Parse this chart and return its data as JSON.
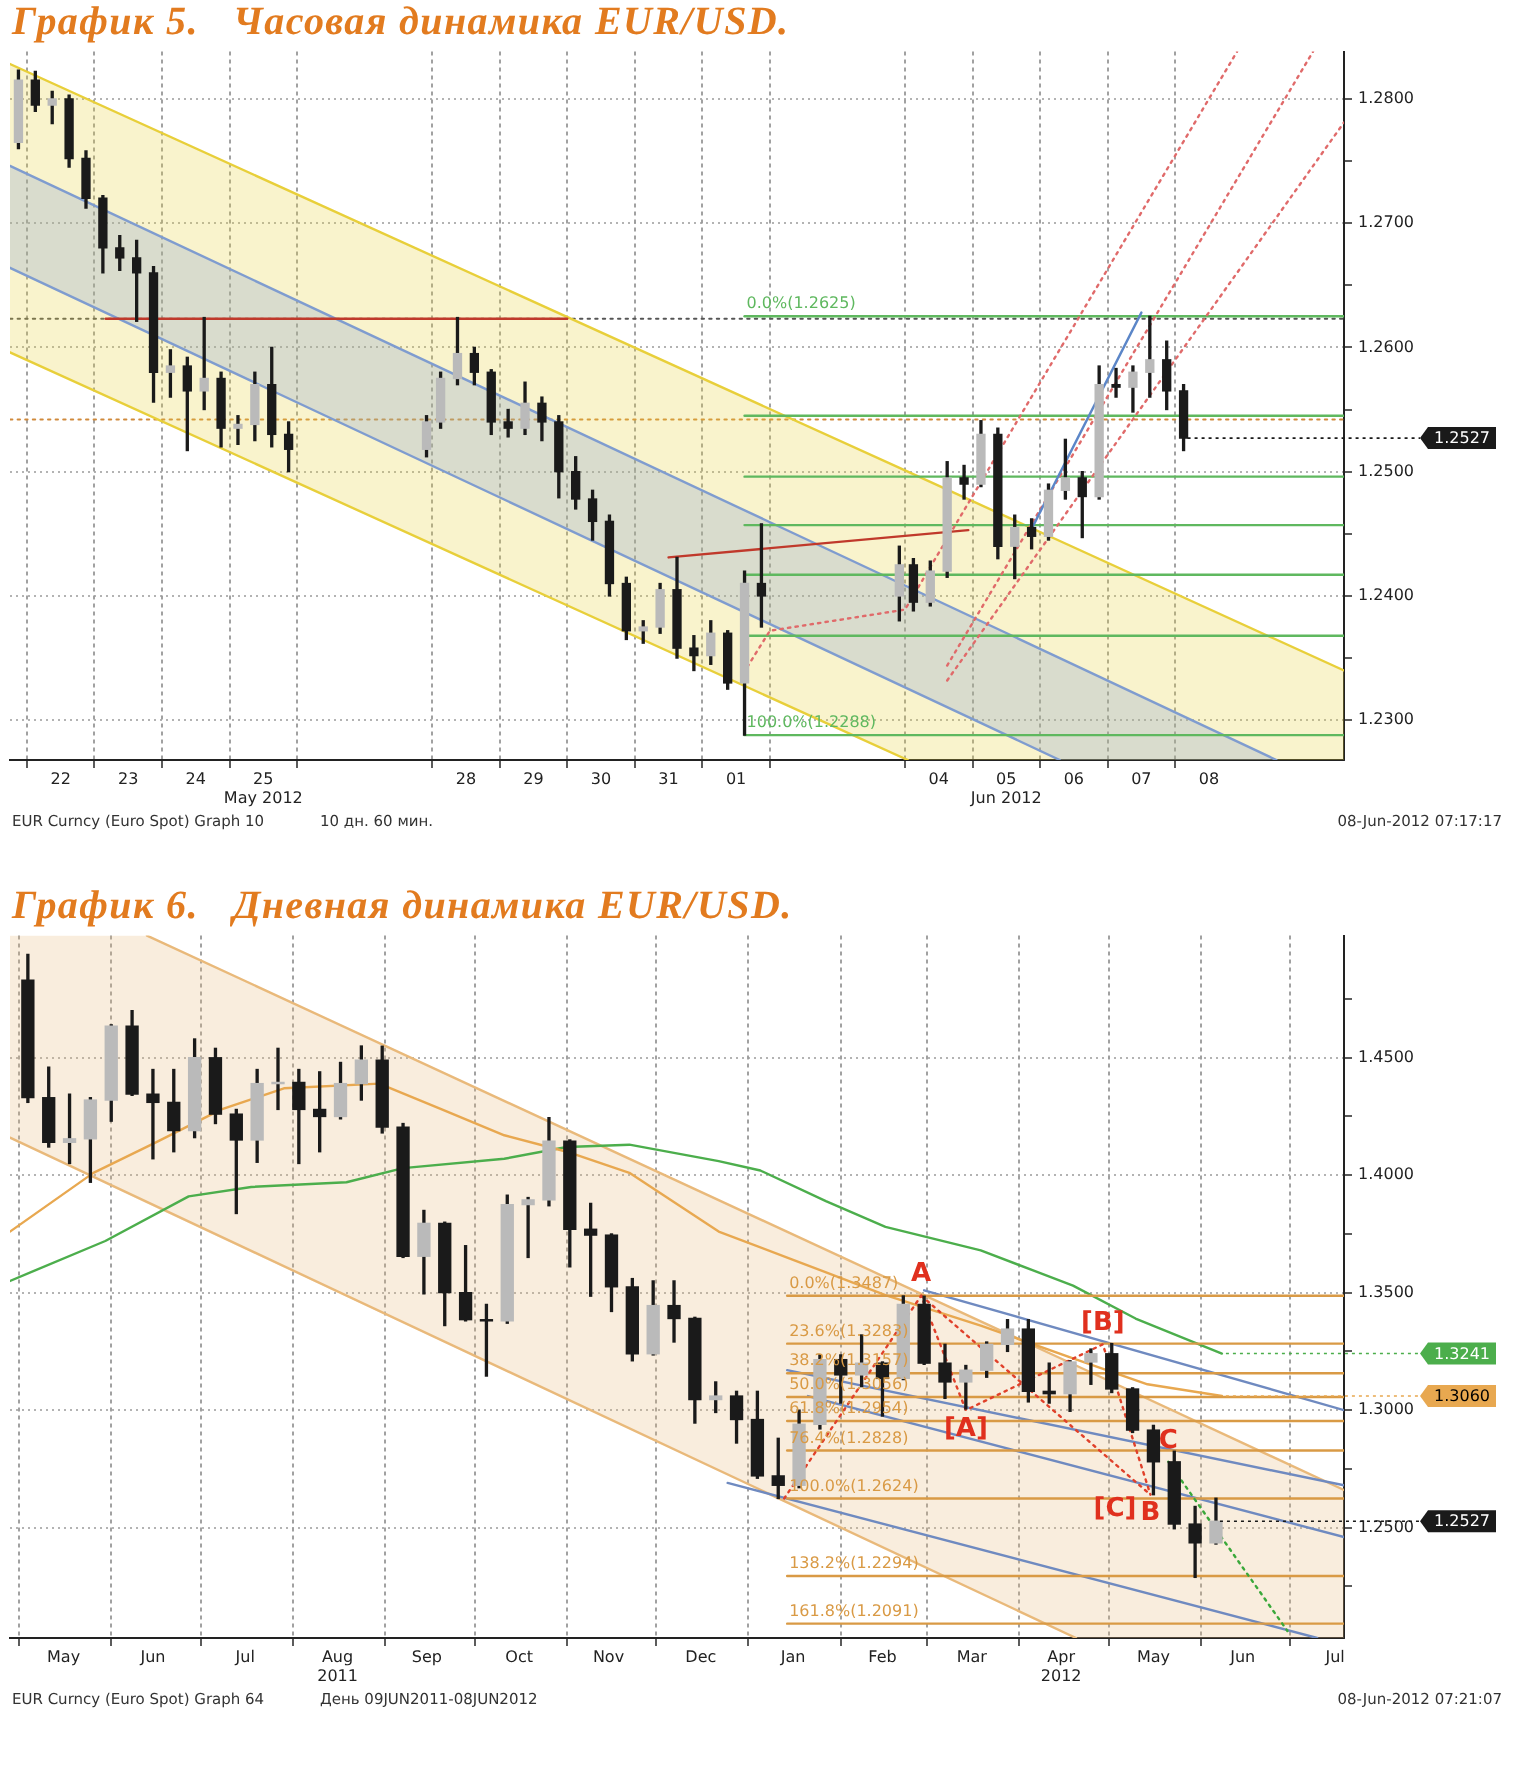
{
  "chart_data": [
    {
      "type": "candlestick",
      "title": "График 5.   Часовая динамика EUR/USD.",
      "color": "#1a1a1a",
      "x": [
        "2012-05-21T21:00",
        "2012-05-22T03:00",
        "2012-05-22T09:00",
        "2012-05-22T15:00",
        "2012-05-22T21:00",
        "2012-05-23T03:00",
        "2012-05-23T09:00",
        "2012-05-23T15:00",
        "2012-05-23T21:00",
        "2012-05-24T03:00",
        "2012-05-24T09:00",
        "2012-05-24T15:00",
        "2012-05-24T21:00",
        "2012-05-25T03:00",
        "2012-05-25T09:00",
        "2012-05-25T15:00",
        "2012-05-25T21:00",
        "2012-05-27T22:00",
        "2012-05-28T03:00",
        "2012-05-28T09:00",
        "2012-05-28T15:00",
        "2012-05-28T21:00",
        "2012-05-29T03:00",
        "2012-05-29T09:00",
        "2012-05-29T15:00",
        "2012-05-29T21:00",
        "2012-05-30T03:00",
        "2012-05-30T09:00",
        "2012-05-30T15:00",
        "2012-05-30T21:00",
        "2012-05-31T03:00",
        "2012-05-31T09:00",
        "2012-05-31T15:00",
        "2012-05-31T21:00",
        "2012-06-01T03:00",
        "2012-06-01T09:00",
        "2012-06-01T15:00",
        "2012-06-01T21:00",
        "2012-06-03T22:00",
        "2012-06-04T03:00",
        "2012-06-04T09:00",
        "2012-06-04T15:00",
        "2012-06-04T21:00",
        "2012-06-05T03:00",
        "2012-06-05T09:00",
        "2012-06-05T15:00",
        "2012-06-05T21:00",
        "2012-06-06T03:00",
        "2012-06-06T09:00",
        "2012-06-06T15:00",
        "2012-06-06T21:00",
        "2012-06-07T03:00",
        "2012-06-07T09:00",
        "2012-06-07T15:00",
        "2012-06-07T21:00",
        "2012-06-08T03:00"
      ],
      "ohlc": [
        [
          1.2765,
          1.2823,
          1.276,
          1.2815
        ],
        [
          1.2815,
          1.2822,
          1.279,
          1.2795
        ],
        [
          1.2795,
          1.2806,
          1.278,
          1.28
        ],
        [
          1.28,
          1.2803,
          1.2745,
          1.2752
        ],
        [
          1.2752,
          1.2758,
          1.2712,
          1.272
        ],
        [
          1.272,
          1.2722,
          1.266,
          1.268
        ],
        [
          1.268,
          1.269,
          1.2662,
          1.2672
        ],
        [
          1.2672,
          1.2686,
          1.2621,
          1.266
        ],
        [
          1.266,
          1.2665,
          1.2556,
          1.258
        ],
        [
          1.258,
          1.2598,
          1.256,
          1.2585
        ],
        [
          1.2585,
          1.2592,
          1.2517,
          1.2565
        ],
        [
          1.2565,
          1.2624,
          1.255,
          1.2575
        ],
        [
          1.2575,
          1.258,
          1.252,
          1.2535
        ],
        [
          1.2535,
          1.2545,
          1.2522,
          1.2538
        ],
        [
          1.2538,
          1.258,
          1.2525,
          1.257
        ],
        [
          1.257,
          1.26,
          1.252,
          1.253
        ],
        [
          1.253,
          1.254,
          1.25,
          1.2518
        ],
        [
          1.2518,
          1.2545,
          1.2512,
          1.254
        ],
        [
          1.254,
          1.258,
          1.2535,
          1.2575
        ],
        [
          1.2575,
          1.2624,
          1.257,
          1.2595
        ],
        [
          1.2595,
          1.26,
          1.257,
          1.258
        ],
        [
          1.258,
          1.2582,
          1.253,
          1.254
        ],
        [
          1.254,
          1.255,
          1.2528,
          1.2535
        ],
        [
          1.2535,
          1.2572,
          1.253,
          1.2555
        ],
        [
          1.2555,
          1.256,
          1.2525,
          1.254
        ],
        [
          1.254,
          1.2545,
          1.2479,
          1.25
        ],
        [
          1.25,
          1.2512,
          1.247,
          1.2478
        ],
        [
          1.2478,
          1.2485,
          1.2445,
          1.246
        ],
        [
          1.246,
          1.2465,
          1.24,
          1.241
        ],
        [
          1.241,
          1.2415,
          1.2365,
          1.2372
        ],
        [
          1.2372,
          1.238,
          1.2362,
          1.2375
        ],
        [
          1.2375,
          1.241,
          1.237,
          1.2405
        ],
        [
          1.2405,
          1.2431,
          1.235,
          1.2358
        ],
        [
          1.2358,
          1.2368,
          1.234,
          1.2352
        ],
        [
          1.2352,
          1.238,
          1.2345,
          1.237
        ],
        [
          1.237,
          1.2372,
          1.2325,
          1.233
        ],
        [
          1.233,
          1.242,
          1.2288,
          1.241
        ],
        [
          1.241,
          1.2458,
          1.2375,
          1.24
        ],
        [
          1.24,
          1.244,
          1.238,
          1.2425
        ],
        [
          1.2425,
          1.243,
          1.2388,
          1.2395
        ],
        [
          1.2395,
          1.2428,
          1.2392,
          1.242
        ],
        [
          1.242,
          1.2508,
          1.2415,
          1.2495
        ],
        [
          1.2495,
          1.2505,
          1.2478,
          1.249
        ],
        [
          1.249,
          1.2541,
          1.2488,
          1.253
        ],
        [
          1.253,
          1.2535,
          1.243,
          1.244
        ],
        [
          1.244,
          1.2465,
          1.2414,
          1.2455
        ],
        [
          1.2455,
          1.2462,
          1.2438,
          1.2448
        ],
        [
          1.2448,
          1.249,
          1.2445,
          1.2485
        ],
        [
          1.2485,
          1.2526,
          1.2478,
          1.2495
        ],
        [
          1.2495,
          1.25,
          1.2447,
          1.248
        ],
        [
          1.248,
          1.2585,
          1.2478,
          1.257
        ],
        [
          1.257,
          1.2583,
          1.256,
          1.2568
        ],
        [
          1.2568,
          1.2585,
          1.2548,
          1.258
        ],
        [
          1.258,
          1.2625,
          1.256,
          1.259
        ],
        [
          1.259,
          1.2605,
          1.255,
          1.2565
        ],
        [
          1.2565,
          1.257,
          1.2517,
          1.2527
        ]
      ],
      "colors": [
        "#bababa",
        "#1a1a1a",
        "#bababa",
        "#1a1a1a",
        "#1a1a1a",
        "#1a1a1a",
        "#1a1a1a",
        "#1a1a1a",
        "#1a1a1a",
        "#bababa",
        "#1a1a1a",
        "#bababa",
        "#1a1a1a",
        "#bababa",
        "#bababa",
        "#1a1a1a",
        "#1a1a1a",
        "#bababa",
        "#bababa",
        "#bababa",
        "#1a1a1a",
        "#1a1a1a",
        "#1a1a1a",
        "#bababa",
        "#1a1a1a",
        "#1a1a1a",
        "#1a1a1a",
        "#1a1a1a",
        "#1a1a1a",
        "#1a1a1a",
        "#bababa",
        "#bababa",
        "#1a1a1a",
        "#1a1a1a",
        "#bababa",
        "#1a1a1a",
        "#bababa",
        "#1a1a1a",
        "#bababa",
        "#1a1a1a",
        "#bababa",
        "#bababa",
        "#1a1a1a",
        "#bababa",
        "#1a1a1a",
        "#bababa",
        "#1a1a1a",
        "#bababa",
        "#bababa",
        "#1a1a1a",
        "#bababa",
        "#1a1a1a",
        "#bababa",
        "#bababa",
        "#1a1a1a",
        "#1a1a1a"
      ],
      "series": [
        {
          "type": "line",
          "color": "#e8cf3a",
          "x": [
            "2012-05-21T18:00",
            "2012-06-04T01:00",
            "2012-06-10T12:00"
          ],
          "values": [
            1.2828,
            1.25,
            1.234
          ],
          "lower": [
            1.2596,
            1.2268,
            1.2268
          ],
          "upper": [
            1.2828,
            1.25,
            1.234
          ]
        },
        {
          "type": "line",
          "color": "#e8cf3a",
          "x": [
            "2012-05-21T18:00",
            "2012-06-04T01:00"
          ],
          "values": [
            1.2596,
            1.2268
          ]
        },
        {
          "type": "line",
          "color": "#7f9ccf",
          "x": [
            "2012-05-21T18:00",
            "2012-06-06T07:00",
            "2012-06-09T12:00"
          ],
          "values": [
            1.2746,
            1.235,
            1.2268
          ],
          "lower": [
            1.2664,
            1.2268,
            1.2268
          ],
          "upper": [
            1.2746,
            1.235,
            1.2268
          ]
        },
        {
          "type": "line",
          "color": "#7f9ccf",
          "x": [
            "2012-05-21T18:00",
            "2012-06-06T07:00"
          ],
          "values": [
            1.2664,
            1.2268
          ]
        },
        {
          "type": "line",
          "color": "#c0392b",
          "x": [
            "2012-05-23T04:00",
            "2012-05-30T00:00"
          ],
          "values": [
            1.2623,
            1.2623
          ]
        },
        {
          "type": "line",
          "color": "#c0392b",
          "x": [
            "2012-05-31T12:00",
            "2012-06-04T22:30"
          ],
          "values": [
            1.2431,
            1.2453
          ]
        },
        {
          "type": "line",
          "name": "0.0%(1.2625)",
          "color": "#5fb85f",
          "x": [
            "2012-06-01T15:00",
            "2012-06-10T12:00"
          ],
          "values": [
            1.2625,
            1.2625
          ]
        },
        {
          "type": "line",
          "color": "#5fb85f",
          "x": [
            "2012-06-01T15:00",
            "2012-06-10T12:00"
          ],
          "values": [
            1.2545,
            1.2545
          ]
        },
        {
          "type": "line",
          "color": "#5fb85f",
          "x": [
            "2012-06-01T15:00",
            "2012-06-10T12:00"
          ],
          "values": [
            1.2496,
            1.2496
          ]
        },
        {
          "type": "line",
          "color": "#5fb85f",
          "x": [
            "2012-06-01T15:00",
            "2012-06-10T12:00"
          ],
          "values": [
            1.2457,
            1.2457
          ]
        },
        {
          "type": "line",
          "color": "#5fb85f",
          "x": [
            "2012-06-01T15:00",
            "2012-06-10T12:00"
          ],
          "values": [
            1.2417,
            1.2417
          ]
        },
        {
          "type": "line",
          "color": "#5fb85f",
          "x": [
            "2012-06-01T15:00",
            "2012-06-10T12:00"
          ],
          "values": [
            1.2368,
            1.2368
          ]
        },
        {
          "type": "line",
          "name": "100.0%(1.2288)",
          "color": "#5fb85f",
          "x": [
            "2012-06-01T15:00",
            "2012-06-10T12:00"
          ],
          "values": [
            1.2288,
            1.2288
          ]
        },
        {
          "type": "line",
          "color": "#e06a6a",
          "line_style": "dotted",
          "x": [
            "2012-06-01T16:00",
            "2012-06-02T00:00",
            "2012-06-04T00:00",
            "2012-06-08T22:00"
          ],
          "values": [
            1.2343,
            1.2372,
            1.2389,
            1.2838
          ]
        },
        {
          "type": "line",
          "color": "#e06a6a",
          "line_style": "dotted",
          "x": [
            "2012-06-04T15:00",
            "2012-06-10T01:00"
          ],
          "values": [
            1.2344,
            1.2838
          ]
        },
        {
          "type": "line",
          "color": "#e06a6a",
          "line_style": "dotted",
          "x": [
            "2012-06-04T15:00",
            "2012-06-10T12:00"
          ],
          "values": [
            1.2332,
            1.2781
          ]
        },
        {
          "type": "line",
          "color": "#5b86c8",
          "x": [
            "2012-06-05T21:00",
            "2012-06-07T12:00"
          ],
          "values": [
            1.2454,
            1.2628
          ]
        }
      ],
      "ref_lines": [
        {
          "axis": "y",
          "value": 1.2623,
          "color": "#555555",
          "line_style": "dotted"
        },
        {
          "axis": "y",
          "value": 1.2542,
          "color": "#d08a3c",
          "line_style": "dotted"
        }
      ],
      "xlim": [
        "2012-05-21T18:00",
        "2012-06-10T12:00"
      ],
      "xticks": [
        {
          "value": "2012-05-22T00:00",
          "label": null
        },
        {
          "value": "2012-05-22T12:00",
          "label": "22"
        },
        {
          "value": "2012-05-23T00:00",
          "label": null
        },
        {
          "value": "2012-05-23T12:00",
          "label": "23"
        },
        {
          "value": "2012-05-24T00:00",
          "label": null
        },
        {
          "value": "2012-05-24T12:00",
          "label": "24"
        },
        {
          "value": "2012-05-25T00:00",
          "label": null
        },
        {
          "value": "2012-05-25T12:00",
          "label": "25\nMay 2012"
        },
        {
          "value": "2012-05-26T00:00",
          "label": null
        },
        {
          "value": "2012-05-28T00:00",
          "label": null
        },
        {
          "value": "2012-05-28T12:00",
          "label": "28"
        },
        {
          "value": "2012-05-29T00:00",
          "label": null
        },
        {
          "value": "2012-05-29T12:00",
          "label": "29"
        },
        {
          "value": "2012-05-30T00:00",
          "label": null
        },
        {
          "value": "2012-05-30T12:00",
          "label": "30"
        },
        {
          "value": "2012-05-31T00:00",
          "label": null
        },
        {
          "value": "2012-05-31T12:00",
          "label": "31"
        },
        {
          "value": "2012-06-01T00:00",
          "label": null
        },
        {
          "value": "2012-06-01T12:00",
          "label": "01"
        },
        {
          "value": "2012-06-02T00:00",
          "label": null
        },
        {
          "value": "2012-06-04T00:00",
          "label": null
        },
        {
          "value": "2012-06-04T12:00",
          "label": "04"
        },
        {
          "value": "2012-06-05T00:00",
          "label": null
        },
        {
          "value": "2012-06-05T12:00",
          "label": "05\nJun 2012"
        },
        {
          "value": "2012-06-06T00:00",
          "label": null
        },
        {
          "value": "2012-06-06T12:00",
          "label": "06"
        },
        {
          "value": "2012-06-07T00:00",
          "label": null
        },
        {
          "value": "2012-06-07T12:00",
          "label": "07"
        },
        {
          "value": "2012-06-08T00:00",
          "label": null
        },
        {
          "value": "2012-06-08T12:00",
          "label": "08"
        }
      ],
      "ylim": [
        1.2268,
        1.2838
      ],
      "yticks": [
        {
          "value": 1.23,
          "label": "1.2300"
        },
        {
          "value": 1.235,
          "label": null
        },
        {
          "value": 1.24,
          "label": "1.2400"
        },
        {
          "value": 1.245,
          "label": null
        },
        {
          "value": 1.25,
          "label": "1.2500"
        },
        {
          "value": 1.255,
          "label": null
        },
        {
          "value": 1.26,
          "label": "1.2600"
        },
        {
          "value": 1.265,
          "label": null
        },
        {
          "value": 1.27,
          "label": "1.2700"
        },
        {
          "value": 1.275,
          "label": null
        },
        {
          "value": 1.28,
          "label": "1.2800"
        }
      ],
      "grid": true,
      "annotations": [
        "EUR Curncy (Euro Spot) Graph 10",
        "10 дн. 60 мин.",
        "08-Jun-2012 07:17:17",
        {
          "text": "1.2527",
          "x": "2012-06-08T03:00",
          "y": 1.2527
        }
      ]
    },
    {
      "type": "candlestick",
      "title": "График 6.   Дневная динамика EUR/USD.",
      "color": "#1a1a1a",
      "x": [
        "2011-05-04",
        "2011-05-11",
        "2011-05-18",
        "2011-05-25",
        "2011-06-01",
        "2011-06-08",
        "2011-06-15",
        "2011-06-22",
        "2011-06-29",
        "2011-07-06",
        "2011-07-13",
        "2011-07-20",
        "2011-07-27",
        "2011-08-03",
        "2011-08-10",
        "2011-08-17",
        "2011-08-24",
        "2011-08-31",
        "2011-09-07",
        "2011-09-14",
        "2011-09-21",
        "2011-09-28",
        "2011-10-05",
        "2011-10-12",
        "2011-10-19",
        "2011-10-26",
        "2011-11-02",
        "2011-11-09",
        "2011-11-16",
        "2011-11-23",
        "2011-11-30",
        "2011-12-07",
        "2011-12-14",
        "2011-12-21",
        "2011-12-28",
        "2012-01-04",
        "2012-01-11",
        "2012-01-18",
        "2012-01-25",
        "2012-02-01",
        "2012-02-08",
        "2012-02-15",
        "2012-02-22",
        "2012-02-29",
        "2012-03-07",
        "2012-03-14",
        "2012-03-21",
        "2012-03-28",
        "2012-04-04",
        "2012-04-11",
        "2012-04-18",
        "2012-04-25",
        "2012-05-02",
        "2012-05-09",
        "2012-05-16",
        "2012-05-23",
        "2012-05-30",
        "2012-06-06"
      ],
      "ohlc": [
        [
          1.483,
          1.494,
          1.431,
          1.433
        ],
        [
          1.433,
          1.446,
          1.412,
          1.414
        ],
        [
          1.414,
          1.4345,
          1.405,
          1.4155
        ],
        [
          1.4155,
          1.433,
          1.397,
          1.432
        ],
        [
          1.432,
          1.464,
          1.423,
          1.4635
        ],
        [
          1.4635,
          1.47,
          1.434,
          1.4345
        ],
        [
          1.4345,
          1.445,
          1.407,
          1.431
        ],
        [
          1.431,
          1.445,
          1.41,
          1.419
        ],
        [
          1.419,
          1.458,
          1.416,
          1.45
        ],
        [
          1.45,
          1.454,
          1.422,
          1.426
        ],
        [
          1.426,
          1.428,
          1.3837,
          1.415
        ],
        [
          1.415,
          1.445,
          1.4055,
          1.439
        ],
        [
          1.439,
          1.454,
          1.428,
          1.4395
        ],
        [
          1.4395,
          1.445,
          1.405,
          1.428
        ],
        [
          1.428,
          1.444,
          1.41,
          1.425
        ],
        [
          1.425,
          1.448,
          1.424,
          1.439
        ],
        [
          1.439,
          1.455,
          1.432,
          1.449
        ],
        [
          1.449,
          1.4549,
          1.418,
          1.4205
        ],
        [
          1.4205,
          1.422,
          1.365,
          1.3655
        ],
        [
          1.3655,
          1.385,
          1.3495,
          1.3795
        ],
        [
          1.3795,
          1.38,
          1.336,
          1.35
        ],
        [
          1.35,
          1.37,
          1.338,
          1.3385
        ],
        [
          1.3385,
          1.345,
          1.3145,
          1.338
        ],
        [
          1.338,
          1.3915,
          1.337,
          1.3875
        ],
        [
          1.3875,
          1.3905,
          1.365,
          1.3895
        ],
        [
          1.3895,
          1.4245,
          1.387,
          1.4145
        ],
        [
          1.4145,
          1.415,
          1.361,
          1.377
        ],
        [
          1.377,
          1.388,
          1.3485,
          1.3745
        ],
        [
          1.3745,
          1.375,
          1.342,
          1.3525
        ],
        [
          1.3525,
          1.356,
          1.321,
          1.324
        ],
        [
          1.324,
          1.355,
          1.3235,
          1.3445
        ],
        [
          1.3445,
          1.355,
          1.329,
          1.339
        ],
        [
          1.339,
          1.3395,
          1.2945,
          1.3045
        ],
        [
          1.3045,
          1.312,
          1.299,
          1.306
        ],
        [
          1.306,
          1.308,
          1.286,
          1.296
        ],
        [
          1.296,
          1.308,
          1.271,
          1.272
        ],
        [
          1.272,
          1.288,
          1.2624,
          1.268
        ],
        [
          1.268,
          1.3,
          1.267,
          1.294
        ],
        [
          1.294,
          1.3235,
          1.292,
          1.3215
        ],
        [
          1.3215,
          1.3235,
          1.303,
          1.315
        ],
        [
          1.315,
          1.332,
          1.31,
          1.32
        ],
        [
          1.32,
          1.3205,
          1.2975,
          1.3135
        ],
        [
          1.3135,
          1.3486,
          1.313,
          1.345
        ],
        [
          1.345,
          1.3485,
          1.3195,
          1.32
        ],
        [
          1.32,
          1.328,
          1.305,
          1.312
        ],
        [
          1.312,
          1.319,
          1.3005,
          1.317
        ],
        [
          1.317,
          1.329,
          1.314,
          1.328
        ],
        [
          1.328,
          1.3385,
          1.325,
          1.3345
        ],
        [
          1.3345,
          1.3385,
          1.3035,
          1.308
        ],
        [
          1.308,
          1.32,
          1.303,
          1.307
        ],
        [
          1.307,
          1.321,
          1.2995,
          1.3205
        ],
        [
          1.3205,
          1.326,
          1.311,
          1.324
        ],
        [
          1.324,
          1.3283,
          1.3075,
          1.309
        ],
        [
          1.309,
          1.3095,
          1.2905,
          1.2915
        ],
        [
          1.2915,
          1.2935,
          1.264,
          1.278
        ],
        [
          1.278,
          1.2825,
          1.2495,
          1.2515
        ],
        [
          1.2515,
          1.259,
          1.2288,
          1.2435
        ],
        [
          1.2435,
          1.2625,
          1.243,
          1.2527
        ]
      ],
      "colors": [
        "#1a1a1a",
        "#1a1a1a",
        "#bababa",
        "#bababa",
        "#bababa",
        "#1a1a1a",
        "#1a1a1a",
        "#1a1a1a",
        "#bababa",
        "#1a1a1a",
        "#1a1a1a",
        "#bababa",
        "#bababa",
        "#1a1a1a",
        "#1a1a1a",
        "#bababa",
        "#bababa",
        "#1a1a1a",
        "#1a1a1a",
        "#bababa",
        "#1a1a1a",
        "#1a1a1a",
        "#1a1a1a",
        "#bababa",
        "#bababa",
        "#bababa",
        "#1a1a1a",
        "#1a1a1a",
        "#1a1a1a",
        "#1a1a1a",
        "#bababa",
        "#1a1a1a",
        "#1a1a1a",
        "#bababa",
        "#1a1a1a",
        "#1a1a1a",
        "#1a1a1a",
        "#bababa",
        "#bababa",
        "#1a1a1a",
        "#bababa",
        "#1a1a1a",
        "#bababa",
        "#1a1a1a",
        "#1a1a1a",
        "#bababa",
        "#bababa",
        "#bababa",
        "#1a1a1a",
        "#1a1a1a",
        "#bababa",
        "#bababa",
        "#1a1a1a",
        "#1a1a1a",
        "#1a1a1a",
        "#1a1a1a",
        "#1a1a1a",
        "#bababa"
      ],
      "series": [
        {
          "type": "line",
          "color": "#e9b97a",
          "x": [
            "2011-04-28",
            "2011-06-13",
            "2012-04-20",
            "2012-07-19"
          ],
          "values": [
            null,
            1.502,
            1.319,
            1.266
          ],
          "lower": [
            1.416,
            1.388,
            1.203,
            1.203
          ],
          "upper": [
            1.502,
            1.502,
            1.319,
            1.266
          ]
        },
        {
          "type": "line",
          "color": "#e9b97a",
          "x": [
            "2011-04-28",
            "2012-04-20"
          ],
          "values": [
            1.416,
            1.203
          ]
        },
        {
          "type": "line",
          "color": "#4cae4c",
          "x": [
            "2011-04-28",
            "2011-05-30",
            "2011-06-27",
            "2011-07-18",
            "2011-08-19",
            "2011-09-07",
            "2011-10-11",
            "2011-11-01",
            "2011-11-22",
            "2011-12-22",
            "2012-01-05",
            "2012-01-27",
            "2012-02-16",
            "2012-03-19",
            "2012-04-19",
            "2012-05-10",
            "2012-06-08"
          ],
          "values": [
            1.355,
            1.372,
            1.391,
            1.395,
            1.397,
            1.403,
            1.407,
            1.412,
            1.413,
            1.406,
            1.402,
            1.389,
            1.378,
            1.368,
            1.353,
            1.339,
            1.3241
          ]
        },
        {
          "type": "line",
          "color": "#e8a850",
          "x": [
            "2011-04-28",
            "2011-05-26",
            "2011-06-16",
            "2011-07-08",
            "2011-07-29",
            "2011-08-30",
            "2011-09-20",
            "2011-10-11",
            "2011-11-01",
            "2011-11-22",
            "2011-12-22",
            "2012-01-16",
            "2012-02-16",
            "2012-03-19",
            "2012-04-19",
            "2012-05-14",
            "2012-06-08"
          ],
          "values": [
            1.376,
            1.401,
            1.414,
            1.428,
            1.437,
            1.439,
            1.428,
            1.417,
            1.41,
            1.401,
            1.376,
            1.364,
            1.349,
            1.336,
            1.322,
            1.311,
            1.306
          ]
        },
        {
          "type": "line",
          "color": "#6f8ac0",
          "x": [
            "2012-02-29",
            "2012-07-19"
          ],
          "values": [
            1.351,
            1.3
          ]
        },
        {
          "type": "line",
          "color": "#6f8ac0",
          "x": [
            "2012-01-14",
            "2012-07-19"
          ],
          "values": [
            1.317,
            1.268
          ]
        },
        {
          "type": "line",
          "color": "#6f8ac0",
          "x": [
            "2012-01-21",
            "2012-07-19"
          ],
          "values": [
            1.306,
            1.246
          ]
        },
        {
          "type": "line",
          "color": "#6f8ac0",
          "x": [
            "2011-12-25",
            "2012-07-10"
          ],
          "values": [
            1.269,
            1.203
          ]
        },
        {
          "type": "line",
          "name": "0.0%(1.3487)",
          "color": "#d99a45",
          "x": [
            "2012-01-14",
            "2012-07-19"
          ],
          "values": [
            1.3487,
            1.3487
          ]
        },
        {
          "type": "line",
          "name": "23.6%(1.3283)",
          "color": "#d99a45",
          "x": [
            "2012-01-14",
            "2012-07-19"
          ],
          "values": [
            1.3283,
            1.3283
          ]
        },
        {
          "type": "line",
          "name": "38.2%(1.3157)",
          "color": "#d99a45",
          "x": [
            "2012-01-14",
            "2012-07-19"
          ],
          "values": [
            1.3157,
            1.3157
          ]
        },
        {
          "type": "line",
          "name": "50.0%(1.3056)",
          "color": "#d99a45",
          "x": [
            "2012-01-14",
            "2012-07-19"
          ],
          "values": [
            1.3056,
            1.3056
          ]
        },
        {
          "type": "line",
          "name": "61.8%(1.2954)",
          "color": "#d99a45",
          "x": [
            "2012-01-14",
            "2012-07-19"
          ],
          "values": [
            1.2954,
            1.2954
          ]
        },
        {
          "type": "line",
          "name": "76.4%(1.2828)",
          "color": "#d99a45",
          "x": [
            "2012-01-14",
            "2012-07-19"
          ],
          "values": [
            1.2828,
            1.2828
          ]
        },
        {
          "type": "line",
          "name": "100.0%(1.2624)",
          "color": "#d99a45",
          "x": [
            "2012-01-14",
            "2012-07-19"
          ],
          "values": [
            1.2624,
            1.2624
          ]
        },
        {
          "type": "line",
          "name": "138.2%(1.2294)",
          "color": "#d99a45",
          "x": [
            "2012-01-14",
            "2012-07-19"
          ],
          "values": [
            1.2294,
            1.2294
          ]
        },
        {
          "type": "line",
          "name": "161.8%(1.2091)",
          "color": "#d99a45",
          "x": [
            "2012-01-14",
            "2012-07-19"
          ],
          "values": [
            1.2091,
            1.2091
          ]
        },
        {
          "type": "line",
          "color": "#e0402a",
          "line_style": "dotted",
          "x": [
            "2012-01-13",
            "2012-02-28",
            "2012-03-14",
            "2012-04-29",
            "2012-05-15"
          ],
          "values": [
            1.2624,
            1.3487,
            1.3,
            1.328,
            1.264
          ]
        },
        {
          "type": "line",
          "color": "#e0402a",
          "line_style": "dotted",
          "x": [
            "2012-02-28",
            "2012-05-15"
          ],
          "values": [
            1.3487,
            1.264
          ]
        },
        {
          "type": "line",
          "color": "#3aa83a",
          "line_style": "dotted",
          "x": [
            "2012-05-21",
            "2012-06-30"
          ],
          "values": [
            1.278,
            1.206
          ]
        }
      ],
      "xlim": [
        "2011-04-28",
        "2012-07-19"
      ],
      "xticks": [
        {
          "value": "2011-05-01",
          "label": null
        },
        {
          "value": "2011-05-16",
          "label": "May"
        },
        {
          "value": "2011-06-01",
          "label": null
        },
        {
          "value": "2011-06-15",
          "label": "Jun"
        },
        {
          "value": "2011-07-01",
          "label": null
        },
        {
          "value": "2011-07-16",
          "label": "Jul"
        },
        {
          "value": "2011-08-01",
          "label": null
        },
        {
          "value": "2011-08-16",
          "label": "Aug\n2011"
        },
        {
          "value": "2011-09-01",
          "label": null
        },
        {
          "value": "2011-09-15",
          "label": "Sep"
        },
        {
          "value": "2011-10-01",
          "label": null
        },
        {
          "value": "2011-10-16",
          "label": "Oct"
        },
        {
          "value": "2011-11-01",
          "label": null
        },
        {
          "value": "2011-11-15",
          "label": "Nov"
        },
        {
          "value": "2011-12-01",
          "label": null
        },
        {
          "value": "2011-12-16",
          "label": "Dec"
        },
        {
          "value": "2012-01-01",
          "label": null
        },
        {
          "value": "2012-01-16",
          "label": "Jan"
        },
        {
          "value": "2012-02-01",
          "label": null
        },
        {
          "value": "2012-02-15",
          "label": "Feb"
        },
        {
          "value": "2012-03-01",
          "label": null
        },
        {
          "value": "2012-03-16",
          "label": "Mar"
        },
        {
          "value": "2012-04-01",
          "label": null
        },
        {
          "value": "2012-04-15",
          "label": "Apr\n2012"
        },
        {
          "value": "2012-05-01",
          "label": null
        },
        {
          "value": "2012-05-16",
          "label": "May"
        },
        {
          "value": "2012-06-01",
          "label": null
        },
        {
          "value": "2012-06-15",
          "label": "Jun"
        },
        {
          "value": "2012-07-01",
          "label": null
        },
        {
          "value": "2012-07-16",
          "label": "Jul"
        }
      ],
      "ylim": [
        1.203,
        1.502
      ],
      "yticks": [
        {
          "value": 1.225,
          "label": null
        },
        {
          "value": 1.25,
          "label": "1.2500"
        },
        {
          "value": 1.275,
          "label": null
        },
        {
          "value": 1.3,
          "label": "1.3000"
        },
        {
          "value": 1.325,
          "label": null
        },
        {
          "value": 1.35,
          "label": "1.3500"
        },
        {
          "value": 1.375,
          "label": null
        },
        {
          "value": 1.4,
          "label": "1.4000"
        },
        {
          "value": 1.425,
          "label": null
        },
        {
          "value": 1.45,
          "label": "1.4500"
        },
        {
          "value": 1.475,
          "label": null
        }
      ],
      "grid": true,
      "annotations": [
        "EUR Curncy (Euro Spot) Graph 64",
        "День 09JUN2011-08JUN2012",
        "08-Jun-2012 07:21:07",
        {
          "text": "1.2527",
          "x": "2012-06-06",
          "y": 1.2527
        },
        {
          "text": "1.3241",
          "x": "2012-06-08",
          "y": 1.3241
        },
        {
          "text": "1.3060",
          "x": "2012-06-08",
          "y": 1.306
        },
        {
          "text": "A",
          "x": "2012-02-28",
          "y": 1.3487
        },
        {
          "text": "[A]",
          "x": "2012-03-14",
          "y": 1.3
        },
        {
          "text": "[B]",
          "x": "2012-04-29",
          "y": 1.328
        },
        {
          "text": "[C]",
          "x": "2012-05-15",
          "y": 1.264
        },
        {
          "text": "B",
          "x": "2012-05-15",
          "y": 1.264
        },
        {
          "text": "C",
          "x": "2012-05-21",
          "y": 1.278
        }
      ]
    }
  ]
}
